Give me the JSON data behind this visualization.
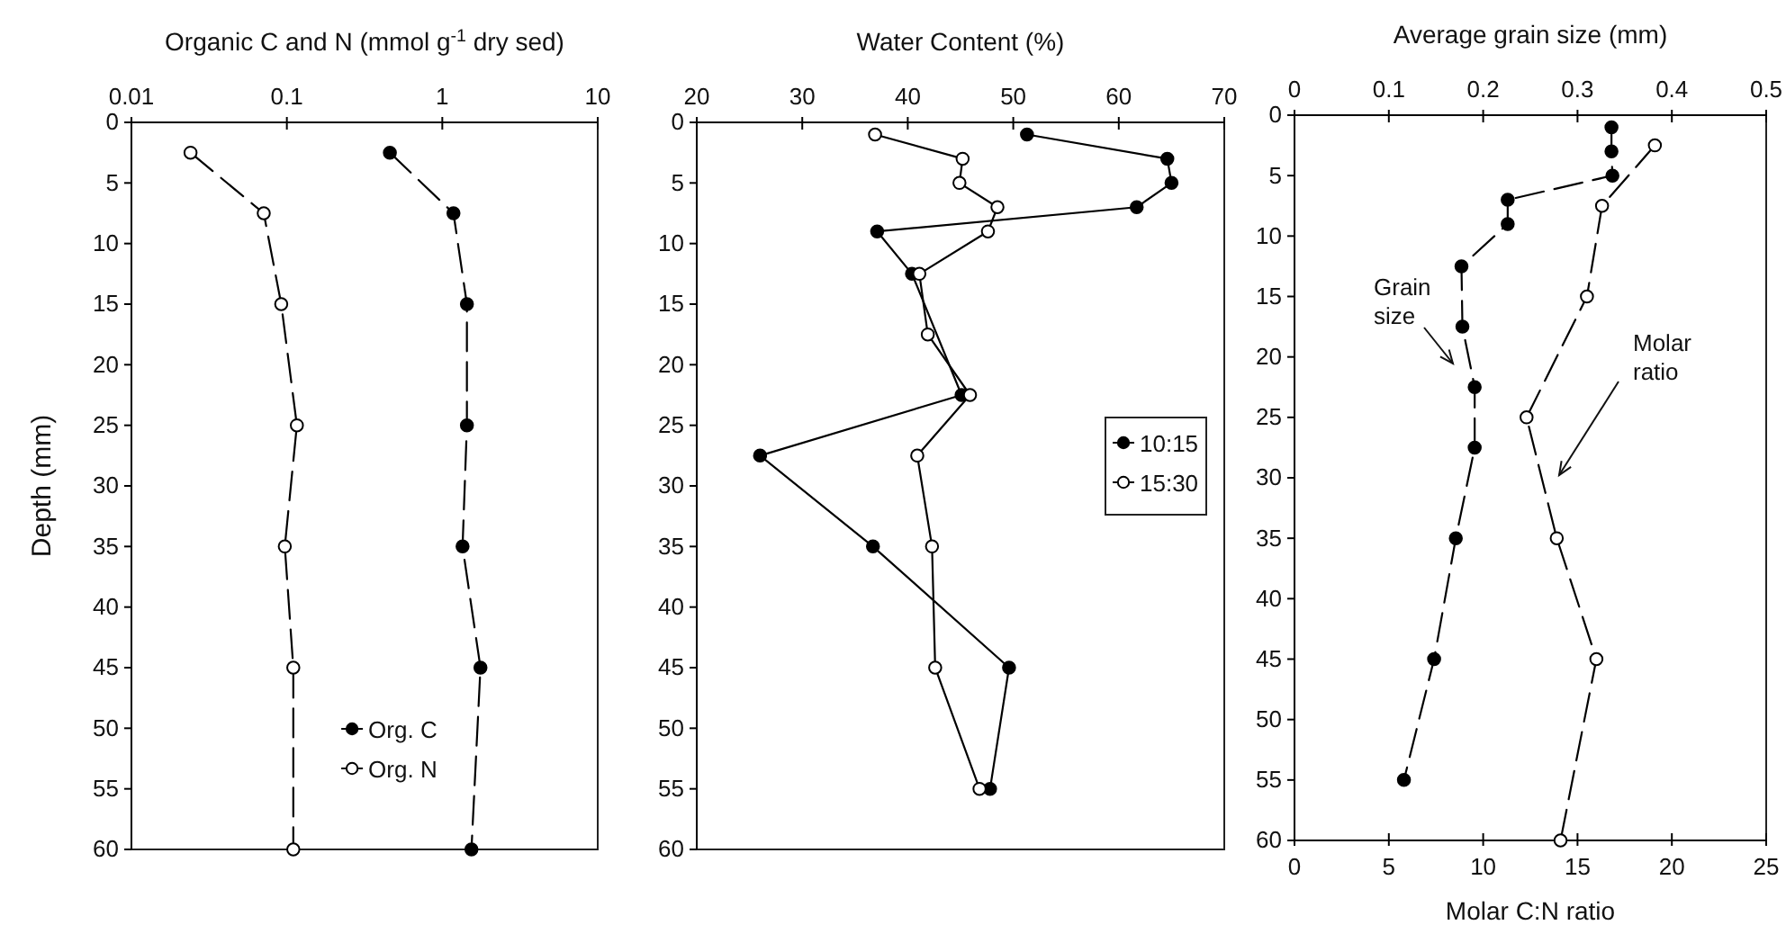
{
  "chart_data": [
    {
      "type": "line",
      "xlabel": "Organic C and N (mmol g$^{-1}$ dry sed)",
      "ylabel": "Depth (mm)",
      "log": "x",
      "xlim": [
        0.01,
        10
      ],
      "xticks": [
        0.01,
        0.1,
        1,
        10
      ],
      "ylim": [
        60,
        0
      ],
      "yticks": [
        0,
        5,
        10,
        15,
        20,
        25,
        30,
        35,
        40,
        45,
        50,
        55,
        60
      ],
      "marker": "circle",
      "line_style": "dashed",
      "legend": "bottom",
      "grid": false,
      "series": [
        {
          "name": "Org. C",
          "color": "#000000",
          "x": [
            0.46,
            1.18,
            1.44,
            1.44,
            1.35,
            1.76,
            1.54
          ],
          "values": [
            2.5,
            7.5,
            15,
            25,
            35,
            45,
            60
          ]
        },
        {
          "name": "Org. N",
          "color": "#000000",
          "x": [
            0.024,
            0.071,
            0.092,
            0.116,
            0.097,
            0.11,
            0.11
          ],
          "values": [
            2.5,
            7.5,
            15,
            25,
            35,
            45,
            60
          ]
        }
      ]
    },
    {
      "type": "line",
      "xlabel": "Water Content (%)",
      "xlim": [
        20,
        70
      ],
      "xticks": [
        20,
        30,
        40,
        50,
        60,
        70
      ],
      "ylim": [
        60,
        0
      ],
      "yticks": [
        0,
        5,
        10,
        15,
        20,
        25,
        30,
        35,
        40,
        45,
        50,
        55,
        60
      ],
      "marker": "circle",
      "legend": "right",
      "grid": false,
      "series": [
        {
          "name": "10:15",
          "color": "#000000",
          "x": [
            51.3,
            64.6,
            65.0,
            61.7,
            37.1,
            40.4,
            45.1,
            26.0,
            36.7,
            49.6,
            47.8
          ],
          "values": [
            1,
            3,
            5,
            7,
            9,
            12.5,
            22.5,
            27.5,
            35,
            45,
            55
          ]
        },
        {
          "name": "15:30",
          "color": "#000000",
          "x": [
            36.9,
            45.2,
            44.9,
            48.5,
            47.6,
            41.1,
            41.9,
            45.9,
            40.9,
            42.3,
            42.6,
            46.8
          ],
          "values": [
            1,
            3,
            5,
            7,
            9,
            12.5,
            17.5,
            22.5,
            27.5,
            35,
            45,
            55
          ]
        }
      ]
    },
    {
      "type": "line",
      "x2label": "Average grain size (mm)",
      "xlabel": "Molar C:N ratio",
      "x2lim": [
        0,
        0.5
      ],
      "x2ticks": [
        0,
        0.1,
        0.2,
        0.3,
        0.4,
        0.5
      ],
      "xlim": [
        0,
        25
      ],
      "xticks": [
        0,
        5,
        10,
        15,
        20,
        25
      ],
      "ylim": [
        60,
        0
      ],
      "yticks": [
        0,
        5,
        10,
        15,
        20,
        25,
        30,
        35,
        40,
        45,
        50,
        55,
        60
      ],
      "marker": "circle",
      "line_style": "dashed",
      "legend": false,
      "grid": false,
      "series": [
        {
          "name": "Grain size",
          "axis": "x2",
          "color": "#000000",
          "x": [
            0.336,
            0.336,
            0.337,
            0.226,
            0.226,
            0.177,
            0.178,
            0.191,
            0.191,
            0.171,
            0.148,
            0.116
          ],
          "values": [
            1,
            3,
            5,
            7,
            9,
            12.5,
            17.5,
            22.5,
            27.5,
            35,
            45,
            55
          ]
        },
        {
          "name": "Molar ratio",
          "color": "#000000",
          "x": [
            19.1,
            16.3,
            15.5,
            12.3,
            13.9,
            16.0,
            14.1
          ],
          "values": [
            2.5,
            7.5,
            15,
            25,
            35,
            45,
            60
          ]
        }
      ]
    }
  ]
}
